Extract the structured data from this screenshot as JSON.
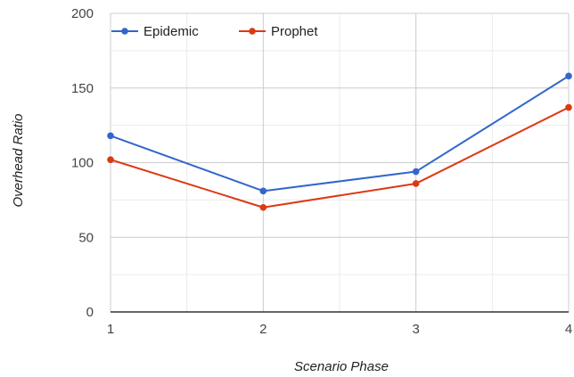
{
  "chart_data": {
    "type": "line",
    "title": "",
    "xlabel": "Scenario Phase",
    "ylabel": "Overhead Ratio",
    "x": [
      1,
      2,
      3,
      4
    ],
    "x_tick_labels": [
      "1",
      "2",
      "3",
      "4"
    ],
    "y_tick_labels": [
      "0",
      "50",
      "100",
      "150",
      "200"
    ],
    "ylim": [
      0,
      200
    ],
    "grid": true,
    "legend_position": "top-left",
    "series": [
      {
        "name": "Epidemic",
        "color": "#3366cc",
        "values": [
          118,
          81,
          94,
          158
        ]
      },
      {
        "name": "Prophet",
        "color": "#dc3912",
        "values": [
          102,
          70,
          86,
          137
        ]
      }
    ]
  }
}
